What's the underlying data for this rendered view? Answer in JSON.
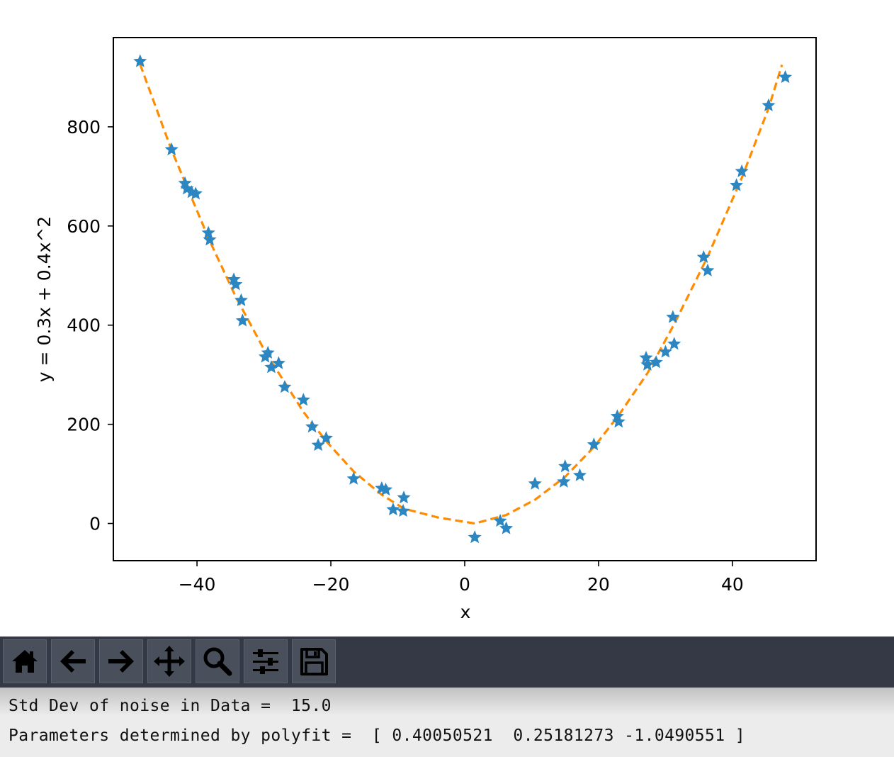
{
  "chart_data": {
    "type": "scatter",
    "title": "",
    "xlabel": "x",
    "ylabel": "y = 0.3x + 0.4x^2",
    "xlim": [
      -52.5,
      52.5
    ],
    "ylim": [
      -75,
      980
    ],
    "xticks": [
      -40,
      -20,
      0,
      20,
      40
    ],
    "xtick_labels": [
      "−40",
      "−20",
      "0",
      "20",
      "40"
    ],
    "yticks": [
      0,
      200,
      400,
      600,
      800
    ],
    "ytick_labels": [
      "0",
      "200",
      "400",
      "600",
      "800"
    ],
    "grid": false,
    "series": [
      {
        "kind": "scatter",
        "marker": "star",
        "color": "#2b86c1",
        "points": [
          [
            -48.5,
            932
          ],
          [
            -43.8,
            754
          ],
          [
            -41.8,
            686
          ],
          [
            -41.5,
            675
          ],
          [
            -40.8,
            668
          ],
          [
            -40.2,
            665
          ],
          [
            -38.3,
            586
          ],
          [
            -38.1,
            572
          ],
          [
            -34.5,
            492
          ],
          [
            -34.2,
            482
          ],
          [
            -33.4,
            450
          ],
          [
            -33.2,
            409
          ],
          [
            -29.8,
            336
          ],
          [
            -29.4,
            344
          ],
          [
            -28.9,
            315
          ],
          [
            -27.8,
            323
          ],
          [
            -26.9,
            275
          ],
          [
            -24.1,
            249
          ],
          [
            -22.8,
            195
          ],
          [
            -21.9,
            158
          ],
          [
            -20.7,
            172
          ],
          [
            -16.6,
            90
          ],
          [
            -12.4,
            71
          ],
          [
            -11.8,
            68
          ],
          [
            -10.7,
            28
          ],
          [
            -9.2,
            25
          ],
          [
            -9.1,
            52
          ],
          [
            1.5,
            -28
          ],
          [
            5.3,
            5
          ],
          [
            6.2,
            -10
          ],
          [
            10.5,
            80
          ],
          [
            14.8,
            84
          ],
          [
            15.0,
            115
          ],
          [
            17.2,
            97
          ],
          [
            19.3,
            159
          ],
          [
            22.8,
            216
          ],
          [
            23.0,
            205
          ],
          [
            27.1,
            334
          ],
          [
            27.3,
            320
          ],
          [
            28.6,
            325
          ],
          [
            30.0,
            346
          ],
          [
            31.1,
            416
          ],
          [
            31.3,
            362
          ],
          [
            35.7,
            537
          ],
          [
            36.3,
            510
          ],
          [
            40.6,
            682
          ],
          [
            41.4,
            710
          ],
          [
            45.4,
            843
          ],
          [
            47.9,
            900
          ]
        ]
      },
      {
        "kind": "line",
        "style": "dashed",
        "color": "#ff8c00",
        "x": [
          -48.5,
          -43.8,
          -38.1,
          -34.2,
          -29.8,
          -24.1,
          -20.7,
          -16.6,
          -12.4,
          -9.1,
          -4,
          1.5,
          6.2,
          10.5,
          15.0,
          19.3,
          23.0,
          27.3,
          31.3,
          36.3,
          41.4,
          45.4,
          47.4
        ],
        "y": [
          926,
          753,
          570,
          457,
          346,
          225,
          166,
          105,
          58,
          30,
          12,
          0,
          17,
          48,
          94,
          154,
          218,
          303,
          402,
          538,
          697,
          837,
          925
        ]
      }
    ]
  },
  "toolbar": {
    "buttons": [
      {
        "name": "home-icon",
        "label": "Home"
      },
      {
        "name": "back-arrow-icon",
        "label": "Back"
      },
      {
        "name": "forward-arrow-icon",
        "label": "Forward"
      },
      {
        "name": "pan-icon",
        "label": "Pan"
      },
      {
        "name": "zoom-icon",
        "label": "Zoom"
      },
      {
        "name": "configure-subplots-icon",
        "label": "Subplots"
      },
      {
        "name": "save-icon",
        "label": "Save"
      }
    ]
  },
  "output": {
    "line1": "Std Dev of noise in Data =  15.0",
    "line2": "Parameters determined by polyfit =  [ 0.40050521  0.25181273 -1.0490551 ]"
  },
  "colors": {
    "toolbar_bg": "#353945",
    "button_bg": "#4a4f5c",
    "scatter": "#2b86c1",
    "fit_line": "#ff8c00"
  }
}
